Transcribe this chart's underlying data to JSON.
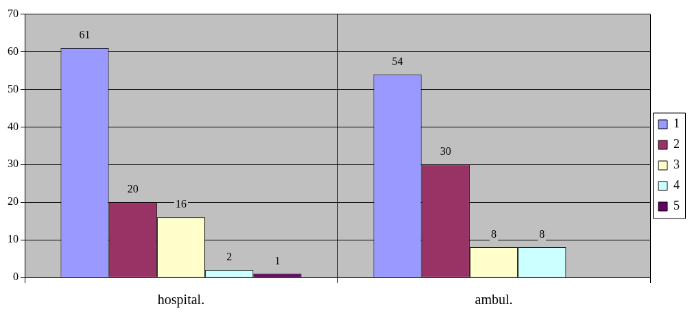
{
  "chart_data": {
    "type": "bar",
    "categories": [
      "hospital.",
      "ambul."
    ],
    "series": [
      {
        "name": "1",
        "color": "#9999ff",
        "values": [
          61,
          54
        ]
      },
      {
        "name": "2",
        "color": "#993366",
        "values": [
          20,
          30
        ]
      },
      {
        "name": "3",
        "color": "#ffffcc",
        "values": [
          16,
          8
        ]
      },
      {
        "name": "4",
        "color": "#ccffff",
        "values": [
          2,
          8
        ]
      },
      {
        "name": "5",
        "color": "#660066",
        "values": [
          1,
          null
        ]
      }
    ],
    "ylim": [
      0,
      70
    ],
    "yticks": [
      0,
      10,
      20,
      30,
      40,
      50,
      60,
      70
    ],
    "grid": true,
    "legend": "right",
    "data_labels": true
  }
}
